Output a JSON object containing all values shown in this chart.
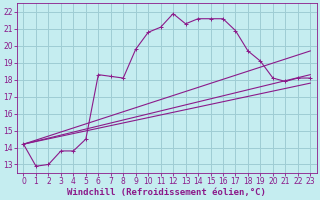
{
  "background_color": "#c5edf0",
  "grid_color": "#9ecdd4",
  "line_color": "#8b1a8a",
  "xlim": [
    -0.5,
    23.5
  ],
  "ylim": [
    12.5,
    22.5
  ],
  "xticks": [
    0,
    1,
    2,
    3,
    4,
    5,
    6,
    7,
    8,
    9,
    10,
    11,
    12,
    13,
    14,
    15,
    16,
    17,
    18,
    19,
    20,
    21,
    22,
    23
  ],
  "yticks": [
    13,
    14,
    15,
    16,
    17,
    18,
    19,
    20,
    21,
    22
  ],
  "xlabel": "Windchill (Refroidissement éolien,°C)",
  "xlabel_fontsize": 6.5,
  "tick_fontsize": 5.5,
  "series1_x": [
    0,
    1,
    2,
    3,
    4,
    5,
    6,
    7,
    8,
    9,
    10,
    11,
    12,
    13,
    14,
    15,
    16,
    17,
    18,
    19,
    20,
    21,
    22,
    23
  ],
  "series1_y": [
    14.2,
    12.9,
    13.0,
    13.8,
    13.8,
    14.5,
    18.3,
    18.2,
    18.1,
    19.8,
    20.8,
    21.1,
    21.9,
    21.3,
    21.6,
    21.6,
    21.6,
    20.9,
    19.7,
    19.1,
    18.1,
    17.9,
    18.1,
    18.1
  ],
  "series2_x": [
    0,
    23
  ],
  "series2_y": [
    14.2,
    19.7
  ],
  "series3_x": [
    0,
    23
  ],
  "series3_y": [
    14.2,
    18.1
  ],
  "series4_x": [
    0,
    23
  ],
  "series4_y": [
    14.2,
    18.1
  ]
}
